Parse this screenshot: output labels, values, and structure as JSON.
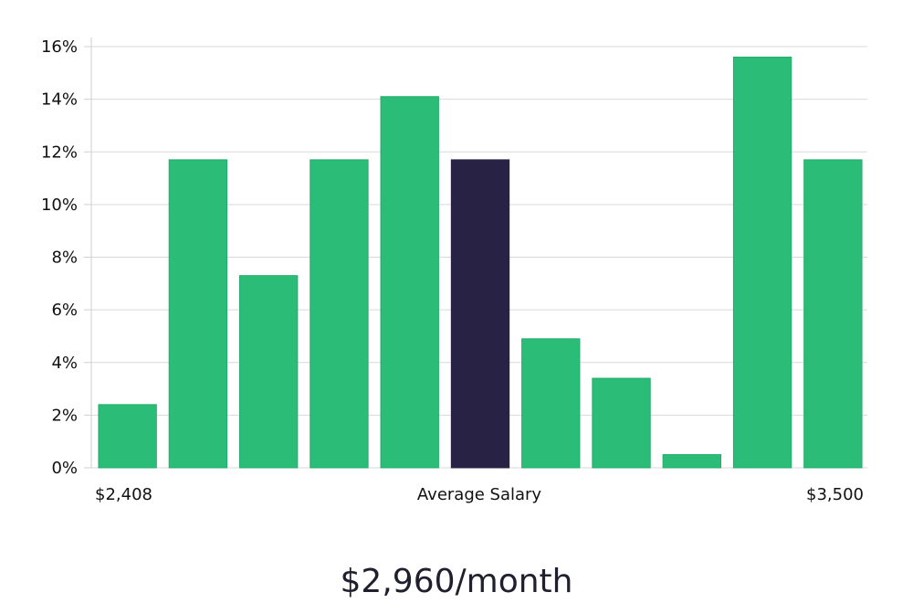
{
  "chart_data": {
    "type": "bar",
    "y_axis": {
      "ticks": [
        "0%",
        "2%",
        "4%",
        "6%",
        "8%",
        "10%",
        "12%",
        "14%",
        "16%"
      ],
      "range": [
        0,
        16
      ],
      "unit": "%"
    },
    "grid": true,
    "values": [
      2.4,
      11.7,
      7.3,
      11.7,
      14.1,
      11.7,
      4.9,
      3.4,
      0.5,
      15.6,
      11.7
    ],
    "highlight_index": 5,
    "x_axis_labels": {
      "left": "$2,408",
      "center": "Average Salary",
      "right": "$3,500"
    },
    "summary_label": "$2,960/month",
    "colors": {
      "bar": "#2bbd77",
      "bar_stroke": "#22ad6a",
      "highlight": "#282345",
      "grid": "#d9d9d9",
      "axis": "#cfcfcf"
    }
  }
}
